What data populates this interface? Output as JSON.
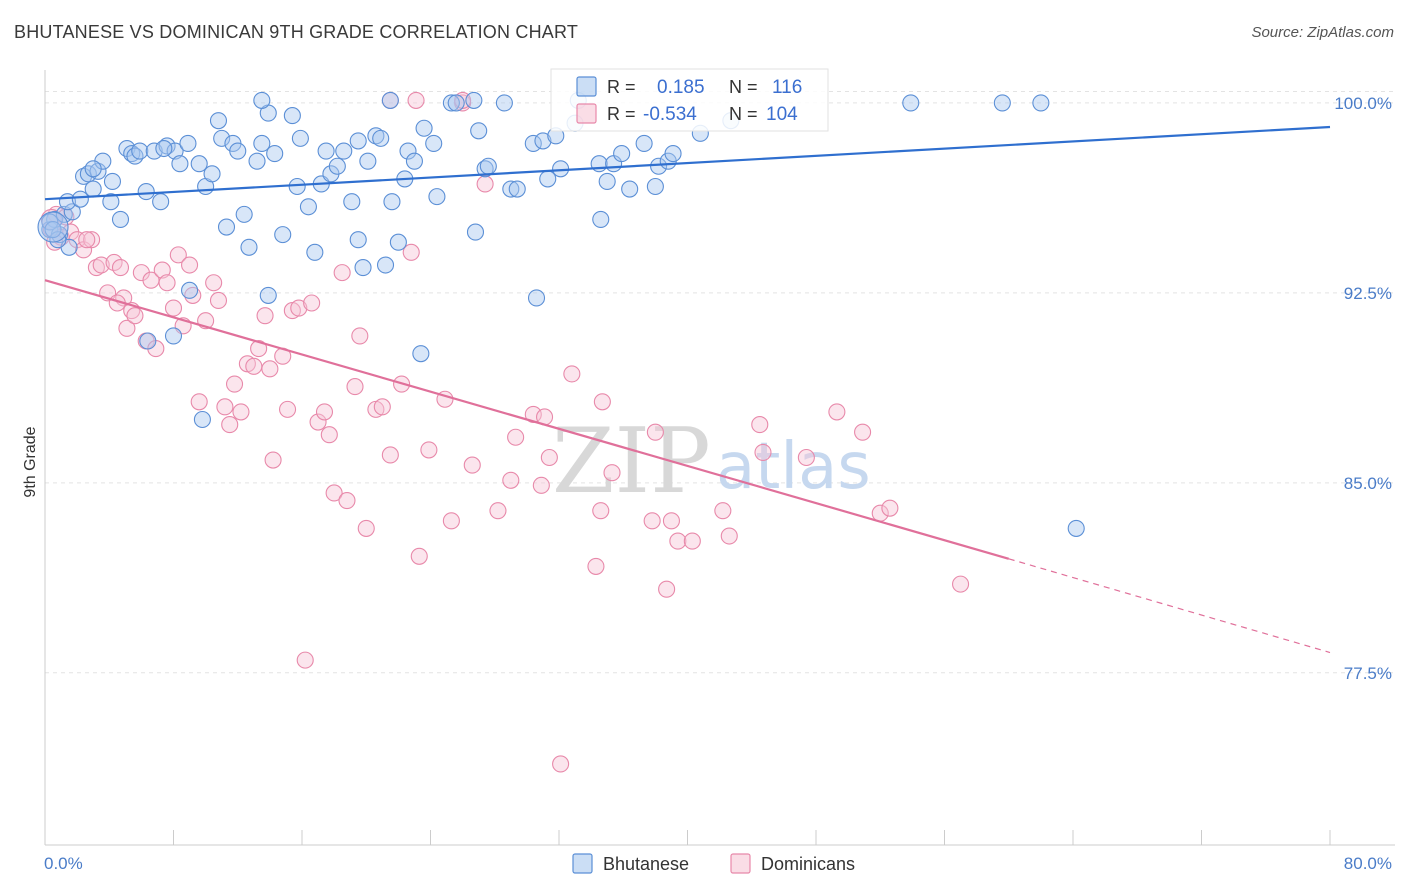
{
  "title": "BHUTANESE VS DOMINICAN 9TH GRADE CORRELATION CHART",
  "source": "Source: ZipAtlas.com",
  "watermark": {
    "zip": "ZIP",
    "atlas": "atlas"
  },
  "legend_box": {
    "r_label": "R =",
    "n_label": "N =",
    "rows": [
      {
        "r": "0.185",
        "n": "116",
        "color": "#7aa8e6"
      },
      {
        "r": "-0.534",
        "n": "104",
        "color": "#f3a6c0"
      }
    ]
  },
  "bottom_legend": [
    {
      "label": "Bhutanese",
      "color": "#7aa8e6"
    },
    {
      "label": "Dominicans",
      "color": "#f3a6c0"
    }
  ],
  "chart_data": {
    "type": "scatter",
    "title": "BHUTANESE VS DOMINICAN 9TH GRADE CORRELATION CHART",
    "xlabel": "",
    "ylabel": "9th Grade",
    "xlim": [
      0,
      80
    ],
    "ylim": [
      70.7,
      101.3
    ],
    "x_tick_labels": [
      "0.0%",
      "80.0%"
    ],
    "y_ticks": [
      100.0,
      92.5,
      85.0,
      77.5
    ],
    "y_tick_labels": [
      "100.0%",
      "92.5%",
      "85.0%",
      "77.5%"
    ],
    "grid": true,
    "legend_position": "top-center",
    "colors": {
      "bhutanese_stroke": "#5b8fd6",
      "bhutanese_fill": "#a9c8ef",
      "bhutanese_line": "#2f6fcf",
      "dominican_stroke": "#e889aa",
      "dominican_fill": "#f7c6d6",
      "dominican_line": "#e0709a"
    },
    "series": [
      {
        "name": "Bhutanese",
        "trend": {
          "x0": 0,
          "y0": 96.2,
          "x1": 80,
          "y1": 99.05
        },
        "points": [
          [
            0.3,
            95.0
          ],
          [
            0.6,
            95.4
          ],
          [
            0.9,
            94.8
          ],
          [
            1.2,
            95.6
          ],
          [
            1.5,
            94.3
          ],
          [
            1.7,
            95.7
          ],
          [
            1.4,
            96.1
          ],
          [
            2.2,
            96.2
          ],
          [
            2.4,
            97.1
          ],
          [
            2.7,
            97.2
          ],
          [
            3.0,
            96.6
          ],
          [
            3.3,
            97.3
          ],
          [
            3.6,
            97.7
          ],
          [
            4.2,
            96.9
          ],
          [
            4.1,
            96.1
          ],
          [
            4.7,
            95.4
          ],
          [
            5.1,
            98.2
          ],
          [
            5.4,
            98.0
          ],
          [
            5.6,
            97.9
          ],
          [
            5.9,
            98.1
          ],
          [
            6.3,
            96.5
          ],
          [
            6.8,
            98.1
          ],
          [
            7.2,
            96.1
          ],
          [
            7.6,
            98.3
          ],
          [
            8.1,
            98.1
          ],
          [
            8.4,
            97.6
          ],
          [
            8.9,
            98.4
          ],
          [
            9.6,
            97.6
          ],
          [
            10.0,
            96.7
          ],
          [
            10.4,
            97.2
          ],
          [
            10.8,
            99.3
          ],
          [
            11.0,
            98.6
          ],
          [
            11.7,
            98.4
          ],
          [
            11.3,
            95.1
          ],
          [
            12.0,
            98.1
          ],
          [
            12.4,
            95.6
          ],
          [
            12.7,
            94.3
          ],
          [
            13.2,
            97.7
          ],
          [
            13.5,
            98.4
          ],
          [
            13.9,
            99.6
          ],
          [
            14.3,
            98.0
          ],
          [
            14.8,
            94.8
          ],
          [
            15.4,
            99.5
          ],
          [
            15.7,
            96.7
          ],
          [
            15.9,
            98.6
          ],
          [
            16.4,
            95.9
          ],
          [
            16.8,
            94.1
          ],
          [
            17.2,
            96.8
          ],
          [
            17.5,
            98.1
          ],
          [
            17.8,
            97.2
          ],
          [
            18.2,
            97.5
          ],
          [
            18.6,
            98.1
          ],
          [
            19.1,
            96.1
          ],
          [
            19.5,
            98.5
          ],
          [
            19.5,
            94.6
          ],
          [
            19.8,
            93.5
          ],
          [
            20.1,
            97.7
          ],
          [
            20.6,
            98.7
          ],
          [
            20.9,
            98.6
          ],
          [
            21.2,
            93.6
          ],
          [
            21.6,
            96.1
          ],
          [
            22.0,
            94.5
          ],
          [
            22.4,
            97.0
          ],
          [
            22.6,
            98.1
          ],
          [
            23.0,
            97.7
          ],
          [
            23.6,
            99.0
          ],
          [
            24.2,
            98.4
          ],
          [
            24.4,
            96.3
          ],
          [
            25.3,
            100.0
          ],
          [
            25.6,
            100.0
          ],
          [
            26.8,
            94.9
          ],
          [
            27.0,
            98.9
          ],
          [
            27.4,
            97.4
          ],
          [
            27.6,
            97.5
          ],
          [
            28.6,
            100.0
          ],
          [
            29.0,
            96.6
          ],
          [
            29.4,
            96.6
          ],
          [
            30.4,
            98.4
          ],
          [
            31.0,
            98.5
          ],
          [
            31.3,
            97.0
          ],
          [
            31.8,
            98.7
          ],
          [
            32.1,
            97.4
          ],
          [
            33.0,
            99.2
          ],
          [
            34.5,
            97.6
          ],
          [
            34.6,
            95.4
          ],
          [
            35.0,
            96.9
          ],
          [
            35.4,
            97.6
          ],
          [
            35.9,
            98.0
          ],
          [
            36.4,
            96.6
          ],
          [
            37.3,
            98.4
          ],
          [
            38.0,
            96.7
          ],
          [
            38.2,
            97.5
          ],
          [
            38.8,
            97.7
          ],
          [
            39.1,
            98.0
          ],
          [
            40.8,
            98.8
          ],
          [
            42.7,
            99.3
          ],
          [
            53.9,
            100.0
          ],
          [
            59.6,
            100.0
          ],
          [
            62.0,
            100.0
          ],
          [
            30.6,
            92.3
          ],
          [
            9.0,
            92.6
          ],
          [
            8.0,
            90.8
          ],
          [
            6.4,
            90.6
          ],
          [
            13.9,
            92.4
          ],
          [
            23.4,
            90.1
          ],
          [
            9.8,
            87.5
          ],
          [
            64.2,
            83.2
          ],
          [
            0.3,
            95.3
          ],
          [
            0.8,
            94.6
          ],
          [
            21.5,
            100.1
          ],
          [
            26.7,
            100.1
          ],
          [
            13.5,
            100.1
          ],
          [
            0.5,
            95.0
          ],
          [
            3.0,
            97.4
          ],
          [
            7.4,
            98.2
          ],
          [
            33.2,
            100.1
          ]
        ]
      },
      {
        "name": "Dominicans",
        "trend": {
          "x0": 0,
          "y0": 93.0,
          "x1": 60,
          "y1": 82.0,
          "dash_to_x": 80,
          "dash_to_y": 78.3
        },
        "points": [
          [
            0.4,
            95.0
          ],
          [
            0.7,
            95.6
          ],
          [
            1.0,
            94.7
          ],
          [
            1.3,
            95.5
          ],
          [
            1.6,
            94.9
          ],
          [
            2.0,
            94.6
          ],
          [
            2.4,
            94.2
          ],
          [
            2.9,
            94.6
          ],
          [
            3.2,
            93.5
          ],
          [
            3.5,
            93.6
          ],
          [
            3.9,
            92.5
          ],
          [
            4.3,
            93.7
          ],
          [
            4.7,
            93.5
          ],
          [
            4.9,
            92.3
          ],
          [
            5.1,
            91.1
          ],
          [
            5.4,
            91.8
          ],
          [
            5.6,
            91.6
          ],
          [
            6.0,
            93.3
          ],
          [
            6.3,
            90.6
          ],
          [
            6.6,
            93.0
          ],
          [
            6.9,
            90.3
          ],
          [
            7.3,
            93.4
          ],
          [
            7.6,
            92.9
          ],
          [
            8.0,
            91.9
          ],
          [
            8.3,
            94.0
          ],
          [
            8.6,
            91.2
          ],
          [
            9.0,
            93.6
          ],
          [
            9.2,
            92.4
          ],
          [
            9.6,
            88.2
          ],
          [
            10.0,
            91.4
          ],
          [
            10.5,
            92.9
          ],
          [
            10.8,
            92.2
          ],
          [
            11.2,
            88.0
          ],
          [
            11.5,
            87.3
          ],
          [
            11.8,
            88.9
          ],
          [
            12.2,
            87.8
          ],
          [
            12.6,
            89.7
          ],
          [
            13.0,
            89.6
          ],
          [
            13.3,
            90.3
          ],
          [
            13.7,
            91.6
          ],
          [
            14.0,
            89.5
          ],
          [
            14.2,
            85.9
          ],
          [
            14.8,
            90.0
          ],
          [
            15.1,
            87.9
          ],
          [
            15.4,
            91.8
          ],
          [
            15.8,
            91.9
          ],
          [
            16.2,
            78.0
          ],
          [
            16.6,
            92.1
          ],
          [
            17.0,
            87.4
          ],
          [
            17.4,
            87.8
          ],
          [
            17.7,
            86.9
          ],
          [
            18.0,
            84.6
          ],
          [
            18.5,
            93.3
          ],
          [
            18.8,
            84.3
          ],
          [
            19.3,
            88.8
          ],
          [
            19.6,
            90.8
          ],
          [
            20.0,
            83.2
          ],
          [
            20.6,
            87.9
          ],
          [
            21.0,
            88.0
          ],
          [
            21.5,
            86.1
          ],
          [
            22.2,
            88.9
          ],
          [
            22.8,
            94.1
          ],
          [
            23.3,
            82.1
          ],
          [
            23.9,
            86.3
          ],
          [
            24.9,
            88.3
          ],
          [
            25.3,
            83.5
          ],
          [
            26.0,
            100.0
          ],
          [
            26.6,
            85.7
          ],
          [
            27.4,
            96.8
          ],
          [
            28.2,
            83.9
          ],
          [
            29.0,
            85.1
          ],
          [
            29.3,
            86.8
          ],
          [
            30.4,
            87.7
          ],
          [
            30.9,
            84.9
          ],
          [
            31.1,
            87.6
          ],
          [
            31.4,
            86.0
          ],
          [
            32.1,
            73.9
          ],
          [
            32.8,
            89.3
          ],
          [
            34.3,
            81.7
          ],
          [
            34.6,
            83.9
          ],
          [
            34.7,
            88.2
          ],
          [
            35.3,
            85.4
          ],
          [
            37.8,
            83.5
          ],
          [
            38.0,
            87.0
          ],
          [
            38.7,
            80.8
          ],
          [
            39.0,
            83.5
          ],
          [
            39.4,
            82.7
          ],
          [
            40.3,
            82.7
          ],
          [
            42.2,
            83.9
          ],
          [
            42.6,
            82.9
          ],
          [
            44.5,
            87.3
          ],
          [
            44.7,
            86.2
          ],
          [
            47.4,
            86.0
          ],
          [
            49.3,
            87.8
          ],
          [
            50.9,
            87.0
          ],
          [
            52.0,
            83.8
          ],
          [
            52.6,
            84.0
          ],
          [
            57.0,
            81.0
          ],
          [
            21.5,
            100.1
          ],
          [
            23.1,
            100.1
          ],
          [
            26.0,
            100.1
          ],
          [
            0.6,
            94.5
          ],
          [
            2.6,
            94.6
          ],
          [
            4.5,
            92.1
          ]
        ]
      }
    ]
  }
}
